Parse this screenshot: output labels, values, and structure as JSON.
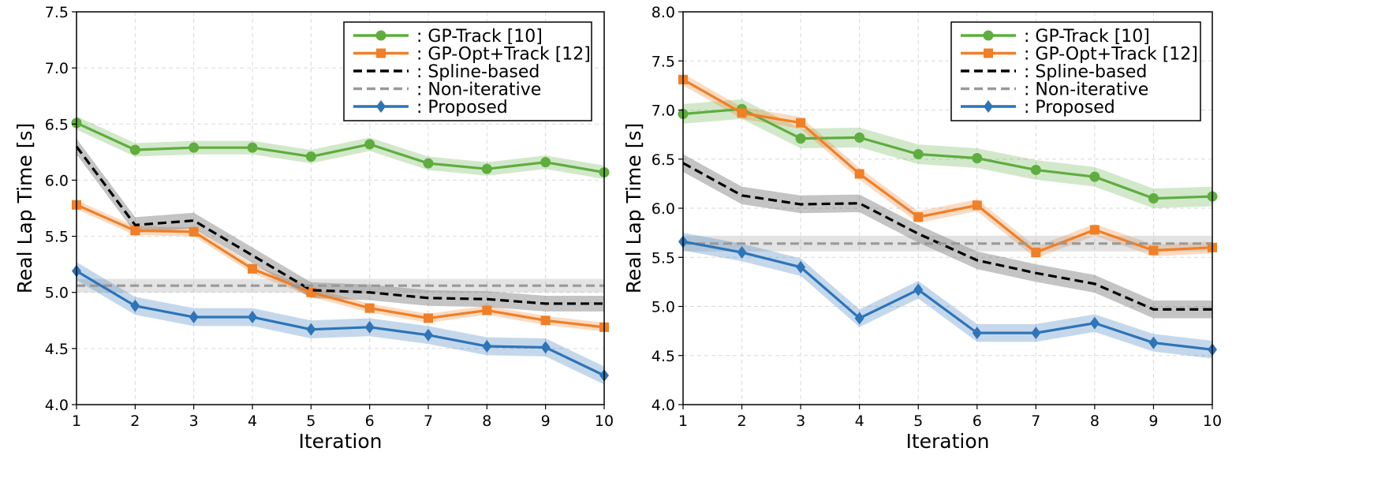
{
  "chart_data": [
    {
      "type": "line",
      "title": "",
      "xlabel": "Iteration",
      "ylabel": "Real Lap Time [s]",
      "xlim": [
        1,
        10
      ],
      "ylim": [
        4.0,
        7.5
      ],
      "x_ticks": [
        1,
        2,
        3,
        4,
        5,
        6,
        7,
        8,
        9,
        10
      ],
      "y_ticks": [
        "4.0",
        "4.5",
        "5.0",
        "5.5",
        "6.0",
        "6.5",
        "7.0",
        "7.5"
      ],
      "grid": true,
      "legend_position": "top-right",
      "x": [
        1,
        2,
        3,
        4,
        5,
        6,
        7,
        8,
        9,
        10
      ],
      "series": [
        {
          "name": ": GP-Track [10]",
          "color": "#5fad3f",
          "style": "solid",
          "marker": "circle",
          "values": [
            6.51,
            6.27,
            6.29,
            6.29,
            6.21,
            6.32,
            6.15,
            6.1,
            6.16,
            6.07
          ],
          "band": 0.06
        },
        {
          "name": ": GP-Opt+Track [12]",
          "color": "#f07f27",
          "style": "solid",
          "marker": "square",
          "values": [
            5.78,
            5.55,
            5.54,
            5.21,
            5.0,
            4.86,
            4.77,
            4.84,
            4.75,
            4.69
          ],
          "band": 0.04
        },
        {
          "name": ": Spline-based",
          "color": "#000000",
          "style": "dashed",
          "marker": "none",
          "values": [
            6.3,
            5.6,
            5.64,
            5.33,
            5.02,
            5.0,
            4.95,
            4.94,
            4.9,
            4.9
          ],
          "band": 0.07
        },
        {
          "name": ": Non-iterative",
          "color": "#999999",
          "style": "dashed",
          "marker": "none",
          "values": [
            5.06,
            5.06,
            5.06,
            5.06,
            5.06,
            5.06,
            5.06,
            5.06,
            5.06,
            5.06
          ],
          "band": 0.06
        },
        {
          "name": ": Proposed",
          "color": "#2e74b8",
          "style": "solid",
          "marker": "diamond",
          "values": [
            5.19,
            4.88,
            4.78,
            4.78,
            4.67,
            4.69,
            4.62,
            4.52,
            4.51,
            4.26
          ],
          "band": 0.08
        }
      ]
    },
    {
      "type": "line",
      "title": "",
      "xlabel": "Iteration",
      "ylabel": "Real Lap Time [s]",
      "xlim": [
        1,
        10
      ],
      "ylim": [
        4.0,
        8.0
      ],
      "x_ticks": [
        1,
        2,
        3,
        4,
        5,
        6,
        7,
        8,
        9,
        10
      ],
      "y_ticks": [
        "4.0",
        "4.5",
        "5.0",
        "5.5",
        "6.0",
        "6.5",
        "7.0",
        "7.5",
        "8.0"
      ],
      "grid": true,
      "legend_position": "top-right",
      "x": [
        1,
        2,
        3,
        4,
        5,
        6,
        7,
        8,
        9,
        10
      ],
      "series": [
        {
          "name": ": GP-Track [10]",
          "color": "#5fad3f",
          "style": "solid",
          "marker": "circle",
          "values": [
            6.96,
            7.01,
            6.71,
            6.72,
            6.55,
            6.51,
            6.39,
            6.32,
            6.1,
            6.12
          ],
          "band": 0.1
        },
        {
          "name": ": GP-Opt+Track [12]",
          "color": "#f07f27",
          "style": "solid",
          "marker": "square",
          "values": [
            7.31,
            6.97,
            6.87,
            6.35,
            5.91,
            6.03,
            5.55,
            5.78,
            5.57,
            5.6
          ],
          "band": 0.06
        },
        {
          "name": ": Spline-based",
          "color": "#000000",
          "style": "dashed",
          "marker": "none",
          "values": [
            6.46,
            6.13,
            6.04,
            6.05,
            5.74,
            5.47,
            5.34,
            5.23,
            4.97,
            4.97
          ],
          "band": 0.09
        },
        {
          "name": ": Non-iterative",
          "color": "#999999",
          "style": "dashed",
          "marker": "none",
          "values": [
            5.64,
            5.64,
            5.64,
            5.64,
            5.64,
            5.64,
            5.64,
            5.64,
            5.64,
            5.64
          ],
          "band": 0.08
        },
        {
          "name": ": Proposed",
          "color": "#2e74b8",
          "style": "solid",
          "marker": "diamond",
          "values": [
            5.66,
            5.55,
            5.4,
            4.88,
            5.17,
            4.73,
            4.73,
            4.83,
            4.63,
            4.56
          ],
          "band": 0.09
        }
      ]
    }
  ]
}
